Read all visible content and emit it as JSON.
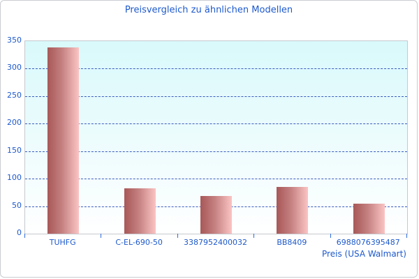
{
  "chart_data": {
    "type": "bar",
    "title": "Preisvergleich zu ähnlichen Modellen",
    "xlabel": "Preis (USA Walmart)",
    "ylabel": "",
    "categories": [
      "TUHFG",
      "C-EL-690-50",
      "3387952400032",
      "BB8409",
      "6988076395487"
    ],
    "values": [
      339,
      83,
      68,
      85,
      54
    ],
    "ylim": [
      0,
      350
    ],
    "yticks": [
      0,
      50,
      100,
      150,
      200,
      250,
      300,
      350
    ],
    "grid": "horizontal-dashed",
    "legend": "none",
    "colors": {
      "text_blue": "#1d59cc",
      "grid_blue": "#3a5bc0",
      "bar_gradient_left": "#a85858",
      "bar_gradient_right": "#fbc4c4",
      "plot_bg_top": "#d9f9fb",
      "plot_bg_bottom": "#ffffff",
      "plot_border": "#c5c9cd",
      "outer_border": "#c9ccd0",
      "figure_bg": "#ffffff"
    }
  }
}
